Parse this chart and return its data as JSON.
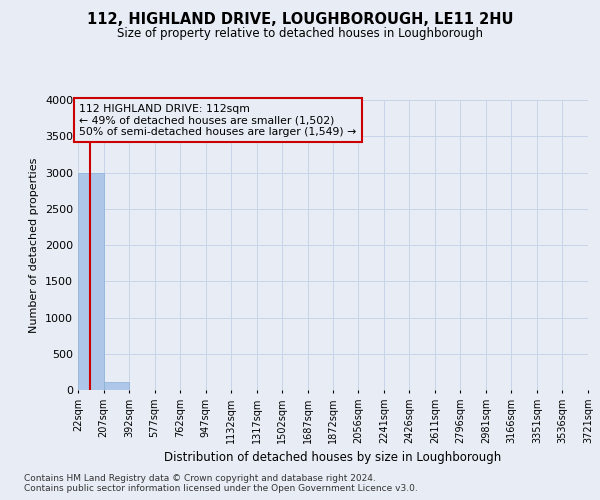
{
  "title": "112, HIGHLAND DRIVE, LOUGHBOROUGH, LE11 2HU",
  "subtitle": "Size of property relative to detached houses in Loughborough",
  "xlabel": "Distribution of detached houses by size in Loughborough",
  "ylabel": "Number of detached properties",
  "footnote1": "Contains HM Land Registry data © Crown copyright and database right 2024.",
  "footnote2": "Contains public sector information licensed under the Open Government Licence v3.0.",
  "bar_edges": [
    22,
    207,
    392,
    577,
    762,
    947,
    1132,
    1317,
    1502,
    1687,
    1872,
    2056,
    2241,
    2426,
    2611,
    2796,
    2981,
    3166,
    3351,
    3536,
    3721
  ],
  "bar_heights": [
    3000,
    110,
    0,
    0,
    0,
    0,
    0,
    0,
    0,
    0,
    0,
    0,
    0,
    0,
    0,
    0,
    0,
    0,
    0,
    0
  ],
  "bar_color": "#aec6e8",
  "bar_edge_color": "#8ab0d8",
  "grid_color": "#c8d4e8",
  "background_color": "#e8edf5",
  "annotation_text_line1": "112 HIGHLAND DRIVE: 112sqm",
  "annotation_text_line2": "← 49% of detached houses are smaller (1,502)",
  "annotation_text_line3": "50% of semi-detached houses are larger (1,549) →",
  "annotation_box_color": "#cc0000",
  "vline_x": 112,
  "vline_color": "#cc0000",
  "ylim": [
    0,
    4000
  ],
  "yticks": [
    0,
    500,
    1000,
    1500,
    2000,
    2500,
    3000,
    3500,
    4000
  ],
  "tick_labels": [
    "22sqm",
    "207sqm",
    "392sqm",
    "577sqm",
    "762sqm",
    "947sqm",
    "1132sqm",
    "1317sqm",
    "1502sqm",
    "1687sqm",
    "1872sqm",
    "2056sqm",
    "2241sqm",
    "2426sqm",
    "2611sqm",
    "2796sqm",
    "2981sqm",
    "3166sqm",
    "3351sqm",
    "3536sqm",
    "3721sqm"
  ]
}
